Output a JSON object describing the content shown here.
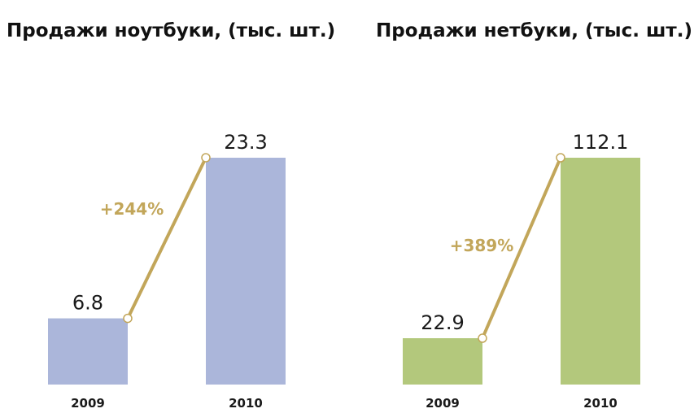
{
  "chart_data": [
    {
      "type": "bar",
      "title": "Продажи ноутбуки, (тыс. шт.)",
      "categories": [
        "2009",
        "2010"
      ],
      "values": [
        6.8,
        23.3
      ],
      "value_labels": [
        "6.8",
        "23.3"
      ],
      "growth_label": "+244%",
      "bar_color": "#abb6da",
      "line_color": "#c2a65a"
    },
    {
      "type": "bar",
      "title": "Продажи нетбуки, (тыс. шт.)",
      "categories": [
        "2009",
        "2010"
      ],
      "values": [
        22.9,
        112.1
      ],
      "value_labels": [
        "22.9",
        "112.1"
      ],
      "growth_label": "+389%",
      "bar_color": "#b3c87c",
      "line_color": "#c2a65a"
    }
  ]
}
